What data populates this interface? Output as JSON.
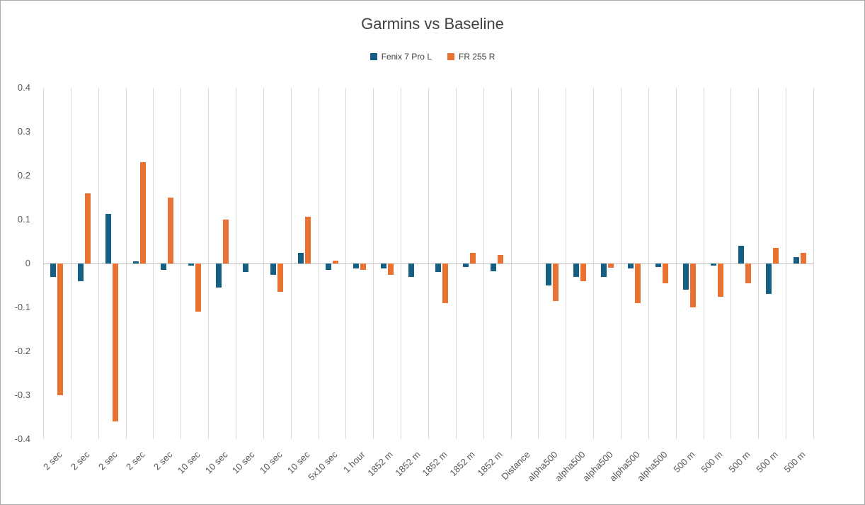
{
  "chart_data": {
    "type": "bar",
    "title": "Garmins vs Baseline",
    "legend_position": "top",
    "grid": "vertical category gridlines, zero axis line only",
    "ylim": [
      -0.4,
      0.4
    ],
    "yticks": [
      {
        "value": 0.4,
        "label": "0.4"
      },
      {
        "value": 0.3,
        "label": "0.3"
      },
      {
        "value": 0.2,
        "label": "0.2"
      },
      {
        "value": 0.1,
        "label": "0.1"
      },
      {
        "value": 0,
        "label": "0"
      },
      {
        "value": -0.1,
        "label": "-0.1"
      },
      {
        "value": -0.2,
        "label": "-0.2"
      },
      {
        "value": -0.3,
        "label": "-0.3"
      },
      {
        "value": -0.4,
        "label": "-0.4"
      }
    ],
    "categories": [
      "2 sec",
      "2 sec",
      "2 sec",
      "2 sec",
      "2 sec",
      "10 sec",
      "10 sec",
      "10 sec",
      "10 sec",
      "10 sec",
      "5x10 sec",
      "1 hour",
      "1852 m",
      "1852 m",
      "1852 m",
      "1852 m",
      "1852 m",
      "Distance",
      "alpha500",
      "alpha500",
      "alpha500",
      "alpha500",
      "alpha500",
      "500 m",
      "500 m",
      "500 m",
      "500 m",
      "500 m"
    ],
    "series": [
      {
        "name": "Fenix 7 Pro L",
        "color": "#156082",
        "values": [
          -0.03,
          -0.04,
          0.113,
          0.005,
          -0.015,
          -0.005,
          -0.055,
          -0.02,
          -0.025,
          0.025,
          -0.015,
          -0.012,
          -0.012,
          -0.03,
          -0.02,
          -0.008,
          -0.018,
          null,
          -0.05,
          -0.03,
          -0.03,
          -0.012,
          -0.008,
          -0.06,
          -0.005,
          0.04,
          -0.07,
          0.015
        ]
      },
      {
        "name": "FR 255 R",
        "color": "#E97132",
        "values": [
          -0.3,
          0.16,
          -0.36,
          0.23,
          0.15,
          -0.11,
          0.1,
          0,
          -0.065,
          0.107,
          0.007,
          -0.015,
          -0.025,
          0,
          -0.09,
          0.025,
          0.02,
          null,
          -0.085,
          -0.04,
          -0.01,
          -0.09,
          -0.045,
          -0.1,
          -0.075,
          -0.045,
          0.035,
          0.025
        ]
      }
    ],
    "colors": {
      "gridline": "#d9d9d9",
      "zero_axis": "#bfbfbf",
      "tick_label": "#595959",
      "title_text": "#404040",
      "chart_border": "#ababab"
    }
  }
}
